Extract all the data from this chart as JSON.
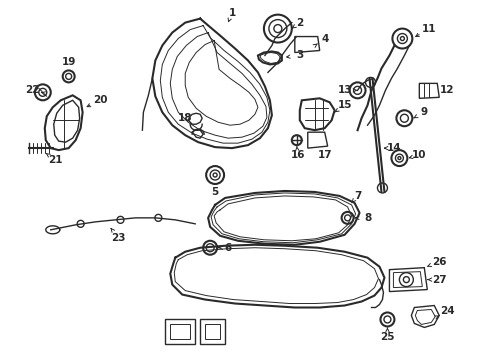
{
  "background_color": "#ffffff",
  "line_color": "#2a2a2a",
  "fig_width": 4.89,
  "fig_height": 3.6,
  "dpi": 100,
  "label_fontsize": 7.5
}
